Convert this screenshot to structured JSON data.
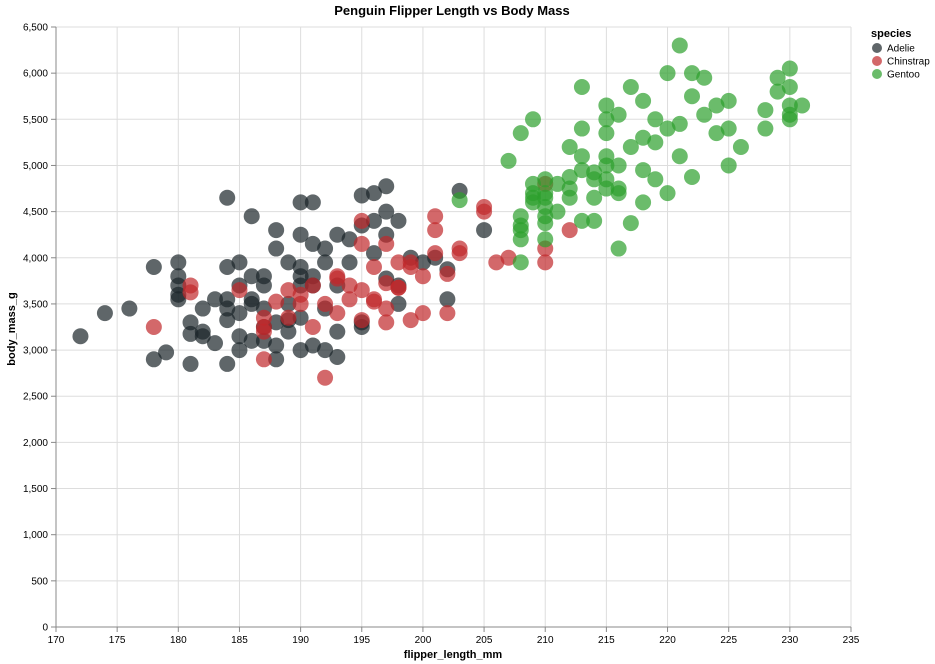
{
  "chart_data": {
    "type": "scatter",
    "title": "Penguin Flipper Length vs Body Mass",
    "xlabel": "flipper_length_mm",
    "ylabel": "body_mass_g",
    "xlim": [
      170,
      235
    ],
    "ylim": [
      0,
      6500
    ],
    "x_ticks": [
      170,
      175,
      180,
      185,
      190,
      195,
      200,
      205,
      210,
      215,
      220,
      225,
      230,
      235
    ],
    "y_ticks": [
      "0",
      "500",
      "1,000",
      "1,500",
      "2,000",
      "2,500",
      "3,000",
      "3,500",
      "4,000",
      "4,500",
      "5,000",
      "5,500",
      "6,000",
      "6,500"
    ],
    "y_tick_values": [
      0,
      500,
      1000,
      1500,
      2000,
      2500,
      3000,
      3500,
      4000,
      4500,
      5000,
      5500,
      6000,
      6500
    ],
    "grid": true,
    "legend": {
      "title": "species",
      "placement": "top-right"
    },
    "series": [
      {
        "name": "Adelie",
        "color": "#1b2529",
        "points": [
          [
            172,
            3150
          ],
          [
            174,
            3400
          ],
          [
            176,
            3450
          ],
          [
            178,
            3900
          ],
          [
            178,
            2900
          ],
          [
            179,
            2975
          ],
          [
            180,
            3600
          ],
          [
            180,
            3700
          ],
          [
            180,
            3950
          ],
          [
            180,
            3550
          ],
          [
            180,
            3800
          ],
          [
            181,
            2850
          ],
          [
            181,
            3300
          ],
          [
            181,
            3175
          ],
          [
            182,
            3200
          ],
          [
            182,
            3150
          ],
          [
            182,
            3450
          ],
          [
            183,
            3550
          ],
          [
            183,
            3075
          ],
          [
            184,
            3900
          ],
          [
            184,
            3450
          ],
          [
            184,
            3550
          ],
          [
            184,
            2850
          ],
          [
            184,
            3325
          ],
          [
            184,
            4650
          ],
          [
            185,
            3950
          ],
          [
            185,
            3700
          ],
          [
            185,
            3400
          ],
          [
            185,
            3000
          ],
          [
            185,
            3150
          ],
          [
            186,
            3550
          ],
          [
            186,
            4450
          ],
          [
            186,
            3100
          ],
          [
            186,
            3800
          ],
          [
            186,
            3500
          ],
          [
            187,
            3800
          ],
          [
            187,
            3450
          ],
          [
            187,
            3100
          ],
          [
            187,
            3250
          ],
          [
            187,
            3700
          ],
          [
            188,
            4300
          ],
          [
            188,
            3050
          ],
          [
            188,
            3300
          ],
          [
            188,
            4100
          ],
          [
            188,
            2900
          ],
          [
            189,
            3950
          ],
          [
            189,
            3500
          ],
          [
            189,
            3200
          ],
          [
            189,
            3325
          ],
          [
            190,
            3900
          ],
          [
            190,
            4250
          ],
          [
            190,
            4600
          ],
          [
            190,
            3350
          ],
          [
            190,
            3700
          ],
          [
            190,
            3800
          ],
          [
            190,
            3000
          ],
          [
            191,
            4600
          ],
          [
            191,
            4150
          ],
          [
            191,
            3700
          ],
          [
            191,
            3050
          ],
          [
            191,
            3800
          ],
          [
            192,
            4100
          ],
          [
            192,
            3000
          ],
          [
            192,
            3950
          ],
          [
            192,
            3450
          ],
          [
            193,
            4250
          ],
          [
            193,
            3200
          ],
          [
            193,
            2925
          ],
          [
            193,
            3700
          ],
          [
            194,
            4200
          ],
          [
            194,
            3950
          ],
          [
            195,
            4675
          ],
          [
            195,
            3250
          ],
          [
            195,
            4350
          ],
          [
            195,
            3300
          ],
          [
            196,
            4700
          ],
          [
            196,
            4400
          ],
          [
            196,
            4050
          ],
          [
            197,
            4775
          ],
          [
            197,
            4500
          ],
          [
            197,
            4250
          ],
          [
            197,
            3775
          ],
          [
            198,
            4400
          ],
          [
            198,
            3500
          ],
          [
            198,
            3700
          ],
          [
            199,
            4000
          ],
          [
            200,
            3950
          ],
          [
            201,
            4000
          ],
          [
            202,
            3550
          ],
          [
            202,
            3875
          ],
          [
            203,
            4725
          ],
          [
            205,
            4300
          ]
        ]
      },
      {
        "name": "Chinstrap",
        "color": "#c0282b",
        "points": [
          [
            178,
            3250
          ],
          [
            181,
            3700
          ],
          [
            181,
            3625
          ],
          [
            185,
            3650
          ],
          [
            187,
            3350
          ],
          [
            187,
            2900
          ],
          [
            187,
            3200
          ],
          [
            187,
            3250
          ],
          [
            188,
            3525
          ],
          [
            189,
            3650
          ],
          [
            189,
            3350
          ],
          [
            190,
            3600
          ],
          [
            190,
            3500
          ],
          [
            191,
            3700
          ],
          [
            191,
            3250
          ],
          [
            192,
            2700
          ],
          [
            192,
            3500
          ],
          [
            193,
            3400
          ],
          [
            193,
            3800
          ],
          [
            193,
            3775
          ],
          [
            194,
            3700
          ],
          [
            194,
            3550
          ],
          [
            195,
            3650
          ],
          [
            195,
            3325
          ],
          [
            195,
            4400
          ],
          [
            195,
            4150
          ],
          [
            196,
            3550
          ],
          [
            196,
            3900
          ],
          [
            196,
            3525
          ],
          [
            197,
            3450
          ],
          [
            197,
            3300
          ],
          [
            197,
            4150
          ],
          [
            197,
            3725
          ],
          [
            198,
            3950
          ],
          [
            198,
            3675
          ],
          [
            198,
            3675
          ],
          [
            199,
            3325
          ],
          [
            199,
            3950
          ],
          [
            199,
            3900
          ],
          [
            200,
            3400
          ],
          [
            200,
            3800
          ],
          [
            201,
            4450
          ],
          [
            201,
            4300
          ],
          [
            201,
            4050
          ],
          [
            202,
            3400
          ],
          [
            202,
            3825
          ],
          [
            203,
            4050
          ],
          [
            203,
            4100
          ],
          [
            205,
            4550
          ],
          [
            205,
            4500
          ],
          [
            206,
            3950
          ],
          [
            207,
            4000
          ],
          [
            210,
            4100
          ],
          [
            210,
            3950
          ],
          [
            210,
            4800
          ],
          [
            212,
            4300
          ]
        ]
      },
      {
        "name": "Gentoo",
        "color": "#2ca02c",
        "points": [
          [
            203,
            4625
          ],
          [
            207,
            5050
          ],
          [
            208,
            5350
          ],
          [
            208,
            4200
          ],
          [
            208,
            4300
          ],
          [
            208,
            4350
          ],
          [
            208,
            3950
          ],
          [
            208,
            4450
          ],
          [
            209,
            5500
          ],
          [
            209,
            4650
          ],
          [
            209,
            4700
          ],
          [
            209,
            4800
          ],
          [
            209,
            4600
          ],
          [
            210,
            4200
          ],
          [
            210,
            4450
          ],
          [
            210,
            4550
          ],
          [
            210,
            4850
          ],
          [
            210,
            4700
          ],
          [
            210,
            4375
          ],
          [
            210,
            4650
          ],
          [
            211,
            4800
          ],
          [
            211,
            4500
          ],
          [
            212,
            5200
          ],
          [
            212,
            4875
          ],
          [
            212,
            4750
          ],
          [
            212,
            4650
          ],
          [
            213,
            5850
          ],
          [
            213,
            5400
          ],
          [
            213,
            4400
          ],
          [
            213,
            4950
          ],
          [
            213,
            5100
          ],
          [
            214,
            4850
          ],
          [
            214,
            4650
          ],
          [
            214,
            4400
          ],
          [
            214,
            4925
          ],
          [
            215,
            5650
          ],
          [
            215,
            5500
          ],
          [
            215,
            5000
          ],
          [
            215,
            4750
          ],
          [
            215,
            4850
          ],
          [
            215,
            5350
          ],
          [
            215,
            5100
          ],
          [
            216,
            5550
          ],
          [
            216,
            4100
          ],
          [
            216,
            4700
          ],
          [
            216,
            5000
          ],
          [
            216,
            4750
          ],
          [
            217,
            5850
          ],
          [
            217,
            4375
          ],
          [
            217,
            5200
          ],
          [
            218,
            5700
          ],
          [
            218,
            5300
          ],
          [
            218,
            4600
          ],
          [
            218,
            4950
          ],
          [
            219,
            5500
          ],
          [
            219,
            5250
          ],
          [
            219,
            4850
          ],
          [
            220,
            6000
          ],
          [
            220,
            5400
          ],
          [
            220,
            4700
          ],
          [
            221,
            6300
          ],
          [
            221,
            5450
          ],
          [
            221,
            5100
          ],
          [
            222,
            6000
          ],
          [
            222,
            5750
          ],
          [
            222,
            4875
          ],
          [
            223,
            5950
          ],
          [
            223,
            5550
          ],
          [
            224,
            5650
          ],
          [
            224,
            5350
          ],
          [
            225,
            5700
          ],
          [
            225,
            5400
          ],
          [
            225,
            5000
          ],
          [
            226,
            5200
          ],
          [
            228,
            5600
          ],
          [
            228,
            5400
          ],
          [
            229,
            5950
          ],
          [
            229,
            5800
          ],
          [
            230,
            6050
          ],
          [
            230,
            5650
          ],
          [
            230,
            5550
          ],
          [
            230,
            5500
          ],
          [
            230,
            5850
          ],
          [
            231,
            5650
          ]
        ]
      }
    ]
  }
}
